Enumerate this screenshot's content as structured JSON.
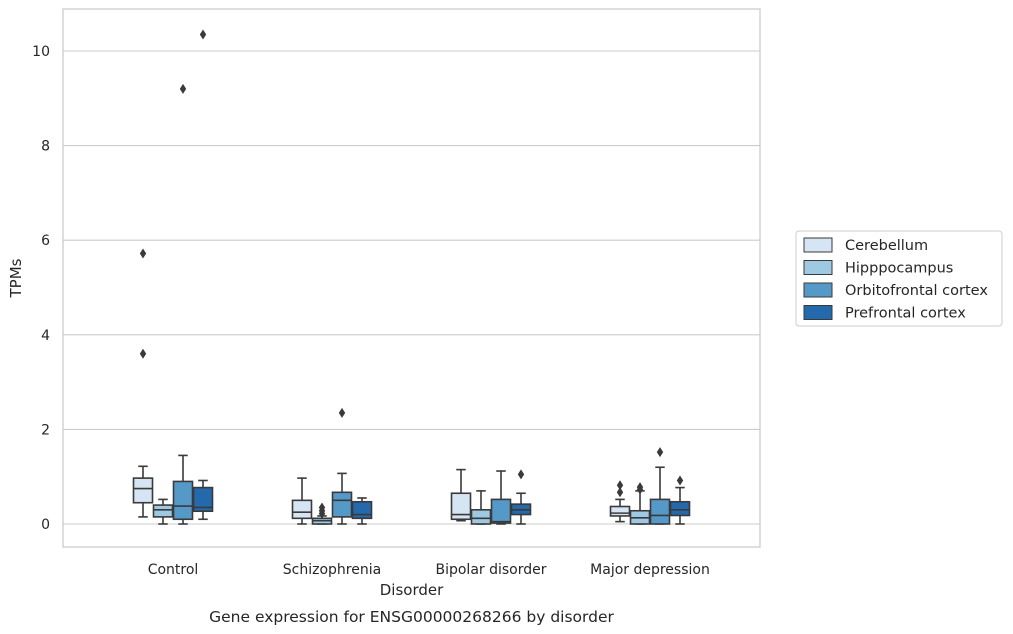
{
  "caption": "Gene expression for ENSG00000268266 by disorder",
  "chart_data": {
    "type": "box",
    "xlabel": "Disorder",
    "ylabel": "TPMs",
    "ylim": [
      -0.5,
      10.85
    ],
    "yticks": [
      0,
      2,
      4,
      6,
      8,
      10
    ],
    "grid": "y",
    "legend_position": "center-right",
    "categories": [
      "Control",
      "Schizophrenia",
      "Bipolar disorder",
      "Major depression"
    ],
    "series": [
      {
        "name": "Cerebellum",
        "color": "#d5e5f3",
        "boxes": [
          {
            "whisker_low": 0.15,
            "q1": 0.45,
            "median": 0.75,
            "q3": 0.97,
            "whisker_high": 1.22,
            "outliers": [
              5.72,
              3.6
            ]
          },
          {
            "whisker_low": 0.0,
            "q1": 0.12,
            "median": 0.25,
            "q3": 0.5,
            "whisker_high": 0.97,
            "outliers": []
          },
          {
            "whisker_low": 0.07,
            "q1": 0.1,
            "median": 0.2,
            "q3": 0.65,
            "whisker_high": 1.15,
            "outliers": []
          },
          {
            "whisker_low": 0.05,
            "q1": 0.17,
            "median": 0.23,
            "q3": 0.37,
            "whisker_high": 0.52,
            "outliers": [
              0.82,
              0.67
            ]
          }
        ]
      },
      {
        "name": "Hipppocampus",
        "color": "#9ec9e2",
        "boxes": [
          {
            "whisker_low": 0.0,
            "q1": 0.15,
            "median": 0.3,
            "q3": 0.4,
            "whisker_high": 0.52,
            "outliers": []
          },
          {
            "whisker_low": 0.0,
            "q1": 0.0,
            "median": 0.07,
            "q3": 0.12,
            "whisker_high": 0.17,
            "outliers": [
              0.35,
              0.28,
              0.22
            ]
          },
          {
            "whisker_low": 0.0,
            "q1": 0.0,
            "median": 0.12,
            "q3": 0.3,
            "whisker_high": 0.7,
            "outliers": []
          },
          {
            "whisker_low": 0.0,
            "q1": 0.0,
            "median": 0.13,
            "q3": 0.28,
            "whisker_high": 0.7,
            "outliers": [
              0.78,
              0.73
            ]
          }
        ]
      },
      {
        "name": "Orbitofrontal cortex",
        "color": "#5599c9",
        "boxes": [
          {
            "whisker_low": 0.0,
            "q1": 0.1,
            "median": 0.38,
            "q3": 0.9,
            "whisker_high": 1.45,
            "outliers": [
              9.2
            ]
          },
          {
            "whisker_low": 0.0,
            "q1": 0.15,
            "median": 0.5,
            "q3": 0.67,
            "whisker_high": 1.07,
            "outliers": [
              2.35
            ]
          },
          {
            "whisker_low": 0.0,
            "q1": 0.02,
            "median": 0.05,
            "q3": 0.52,
            "whisker_high": 1.12,
            "outliers": []
          },
          {
            "whisker_low": 0.0,
            "q1": 0.0,
            "median": 0.18,
            "q3": 0.52,
            "whisker_high": 1.2,
            "outliers": [
              1.52
            ]
          }
        ]
      },
      {
        "name": "Prefrontal cortex",
        "color": "#2469ac",
        "boxes": [
          {
            "whisker_low": 0.1,
            "q1": 0.27,
            "median": 0.35,
            "q3": 0.77,
            "whisker_high": 0.92,
            "outliers": [
              10.35
            ]
          },
          {
            "whisker_low": 0.0,
            "q1": 0.12,
            "median": 0.2,
            "q3": 0.47,
            "whisker_high": 0.55,
            "outliers": []
          },
          {
            "whisker_low": 0.0,
            "q1": 0.2,
            "median": 0.3,
            "q3": 0.42,
            "whisker_high": 0.65,
            "outliers": [
              1.05
            ]
          },
          {
            "whisker_low": 0.0,
            "q1": 0.18,
            "median": 0.3,
            "q3": 0.47,
            "whisker_high": 0.77,
            "outliers": [
              0.92
            ]
          }
        ]
      }
    ]
  }
}
